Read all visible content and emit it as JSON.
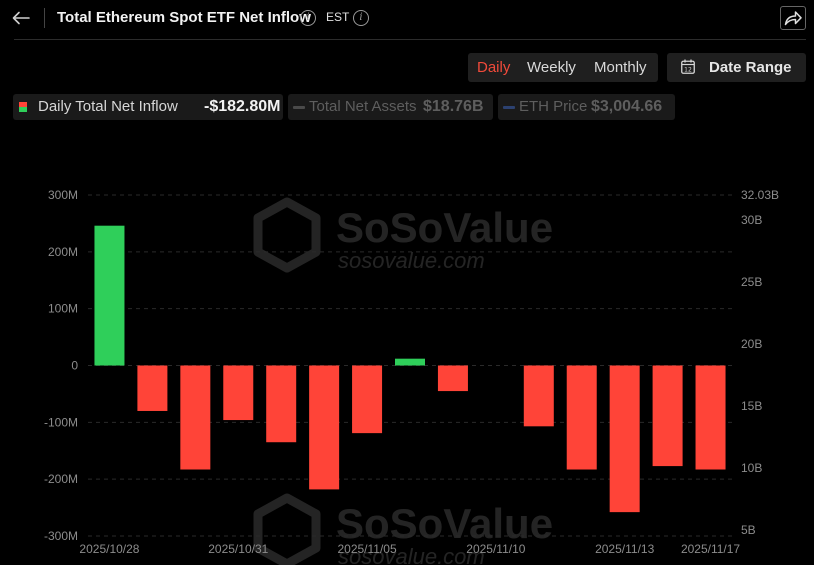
{
  "header": {
    "title": "Total Ethereum Spot ETF Net Inflow",
    "timezone": "EST"
  },
  "period_tabs": [
    {
      "label": "Daily",
      "active": true
    },
    {
      "label": "Weekly",
      "active": false
    },
    {
      "label": "Monthly",
      "active": false
    }
  ],
  "date_range": {
    "label": "Date Range",
    "icon_day": "12"
  },
  "legend": {
    "inflow": {
      "label": "Daily Total Net Inflow",
      "value": "-$182.80M",
      "color_pos": "#2fcf5a",
      "color_neg": "#ff4438"
    },
    "assets": {
      "label": "Total Net Assets",
      "value": "$18.76B",
      "color": "#4a4a4a"
    },
    "eth": {
      "label": "ETH Price",
      "value": "$3,004.66",
      "color": "#2c4170"
    }
  },
  "watermark": {
    "brand": "SoSoValue",
    "url": "sosovalue.com"
  },
  "chart_data": {
    "type": "bar",
    "title": "Total Ethereum Spot ETF Net Inflow",
    "series": [
      {
        "name": "Daily Total Net Inflow",
        "values": [
          246,
          -80,
          -183,
          -96,
          -135,
          -218,
          -119,
          12,
          -45,
          null,
          -107,
          -183,
          -258,
          -177,
          -183
        ]
      }
    ],
    "x_tick_labels": [
      "2025/10/28",
      "2025/10/31",
      "2025/11/05",
      "2025/11/10",
      "2025/11/13",
      "2025/11/17"
    ],
    "x_tick_indices": [
      0,
      3,
      6,
      9,
      12,
      14
    ],
    "y_left": {
      "ticks": [
        "300M",
        "200M",
        "100M",
        "0",
        "-100M",
        "-200M",
        "-300M"
      ],
      "range": [
        -300,
        300
      ],
      "unit": "M"
    },
    "y_right": {
      "ticks": [
        "32.03B",
        "30B",
        "25B",
        "20B",
        "15B",
        "10B",
        "5B"
      ],
      "values": [
        32.03,
        30,
        25,
        20,
        15,
        10,
        5
      ],
      "range": [
        4.5,
        32.03
      ],
      "unit": "B"
    },
    "colors": {
      "positive": "#2fcf5a",
      "negative": "#ff4438",
      "grid": "#2a2a2a",
      "axis_text": "#8c8c8c"
    },
    "grid": true,
    "legend_position": "top-left"
  }
}
